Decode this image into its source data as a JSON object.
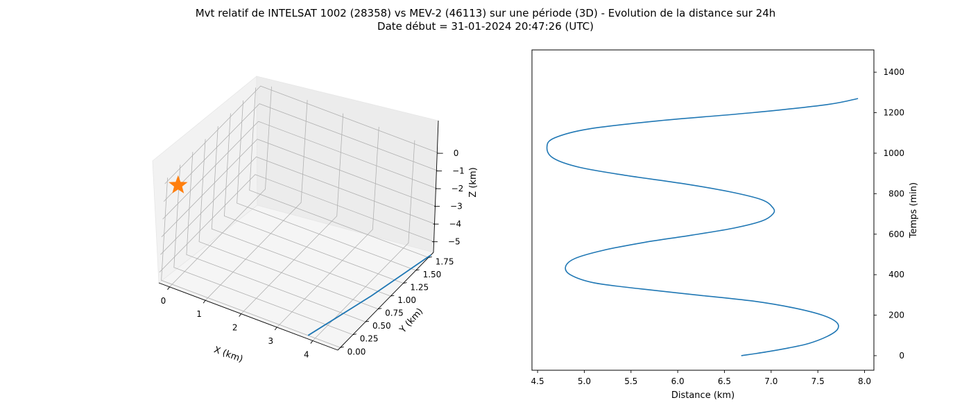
{
  "figure": {
    "title_line1": "Mvt relatif de INTELSAT 1002 (28358) vs MEV-2 (46113) sur une période (3D) - Evolution de la distance sur 24h",
    "title_line2": "Date début = 31-01-2024 20:47:26 (UTC)"
  },
  "colors": {
    "series": "#1f77b4",
    "marker": "#ff7f0e",
    "grid": "#b0b0b0"
  },
  "chart_data": [
    {
      "type": "line3d",
      "title": "",
      "xlabel": "X (km)",
      "ylabel": "Y (km)",
      "zlabel": "Z (km)",
      "xticks": [
        "0",
        "1",
        "2",
        "3",
        "4"
      ],
      "yticks": [
        "0.00",
        "0.25",
        "0.50",
        "0.75",
        "1.00",
        "1.25",
        "1.50",
        "1.75"
      ],
      "zticks": [
        "0",
        "−1",
        "−2",
        "−3",
        "−4",
        "−5"
      ],
      "xlim": [
        -0.3,
        4.7
      ],
      "ylim": [
        -0.05,
        1.85
      ],
      "zlim": [
        -5.6,
        0.2
      ],
      "grid": true,
      "series": [
        {
          "x": [
            3.8,
            4.05,
            4.3,
            4.5,
            4.7
          ],
          "y": [
            0.0,
            0.45,
            0.9,
            1.35,
            1.8
          ],
          "z": [
            -5.6,
            -5.6,
            -5.6,
            -5.6,
            -5.6
          ]
        }
      ],
      "marker": {
        "shape": "star",
        "x": 0,
        "y": 0,
        "z": 0
      }
    },
    {
      "type": "line",
      "title": "",
      "xlabel": "Distance (km)",
      "ylabel": "Temps (min)",
      "xticks": [
        "4.5",
        "5.0",
        "5.5",
        "6.0",
        "6.5",
        "7.0",
        "7.5",
        "8.0"
      ],
      "yticks": [
        "0",
        "200",
        "400",
        "600",
        "800",
        "1000",
        "1200",
        "1400"
      ],
      "xlim": [
        4.44,
        8.1
      ],
      "ylim": [
        -72,
        1510
      ],
      "grid": false,
      "y_axis_position": "right",
      "series": [
        {
          "x": [
            6.68,
            6.9,
            7.15,
            7.4,
            7.6,
            7.71,
            7.7,
            7.55,
            7.25,
            6.8,
            6.2,
            5.6,
            5.1,
            4.85,
            4.8,
            4.9,
            5.2,
            5.65,
            6.15,
            6.6,
            6.9,
            7.02,
            7.02,
            6.9,
            6.55,
            6.05,
            5.45,
            4.95,
            4.67,
            4.6,
            4.68,
            5.05,
            5.8,
            6.8,
            7.6,
            7.93
          ],
          "y": [
            0,
            15,
            35,
            60,
            95,
            130,
            165,
            200,
            235,
            270,
            300,
            330,
            360,
            400,
            440,
            480,
            520,
            560,
            595,
            630,
            665,
            700,
            730,
            770,
            810,
            850,
            890,
            930,
            975,
            1030,
            1075,
            1120,
            1160,
            1200,
            1240,
            1270
          ]
        }
      ]
    }
  ]
}
